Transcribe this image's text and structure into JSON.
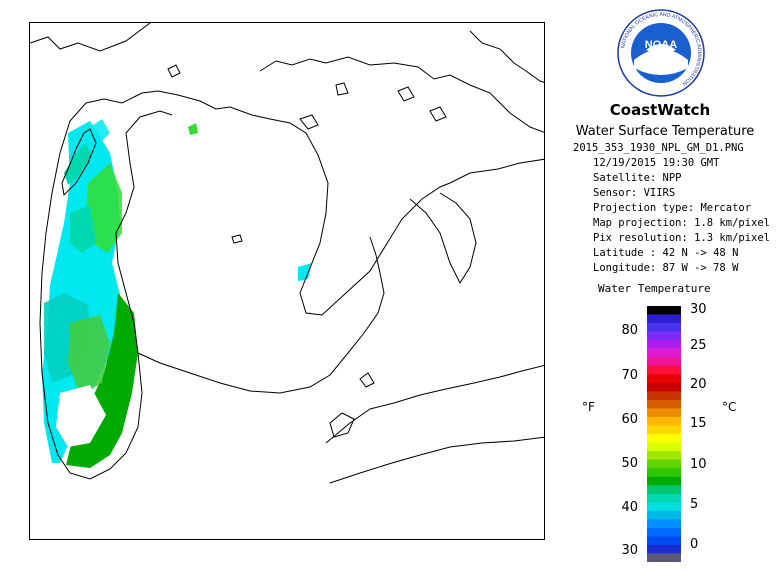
{
  "header": {
    "logo_text": "NOAA",
    "logo_ring_text": "NATIONAL OCEANIC AND ATMOSPHERIC ADMINISTRATION",
    "brand": "CoastWatch",
    "product": "Water Surface Temperature"
  },
  "info": {
    "filename": "2015_353_1930_NPL_GM_D1.PNG",
    "datetime": "12/19/2015   19:30 GMT",
    "satellite": "Satellite: NPP",
    "sensor": "Sensor: VIIRS",
    "projection": "Projection type:  Mercator",
    "map_projection": "Map projection: 1.8 km/pixel",
    "pix_resolution": "Pix resolution: 1.3 km/pixel",
    "latitude": "Latitude : 42 N -> 48 N",
    "longitude": "Longitude: 87 W -> 78 W"
  },
  "scale": {
    "title": "Water Temperature",
    "unit_f": "°F",
    "unit_c": "°C",
    "fahrenheit_ticks": [
      "80",
      "70",
      "60",
      "50",
      "40",
      "30"
    ],
    "celsius_ticks": [
      "30",
      "25",
      "20",
      "15",
      "10",
      "5",
      "0"
    ],
    "colors": [
      "#000000",
      "#2a1fd6",
      "#4a33ee",
      "#7d2cf5",
      "#b01bf0",
      "#e21ad2",
      "#ee1696",
      "#ff0f3c",
      "#e80000",
      "#c80000",
      "#c83400",
      "#d85c00",
      "#ee8c00",
      "#ffb800",
      "#ffd700",
      "#ffff00",
      "#d8ff00",
      "#a0e800",
      "#5fd400",
      "#2ec800",
      "#00aa00",
      "#00c870",
      "#00d8b0",
      "#00e0e0",
      "#00b8e6",
      "#0090ff",
      "#006cff",
      "#004cf0",
      "#1c2cd0",
      "#5a5a78"
    ]
  },
  "colors": {
    "coastline": "#000000",
    "cold_cyan": "#00e8f0",
    "cyan_green": "#00e0a8",
    "green_bright": "#33dd33",
    "green_dark": "#00aa00"
  }
}
